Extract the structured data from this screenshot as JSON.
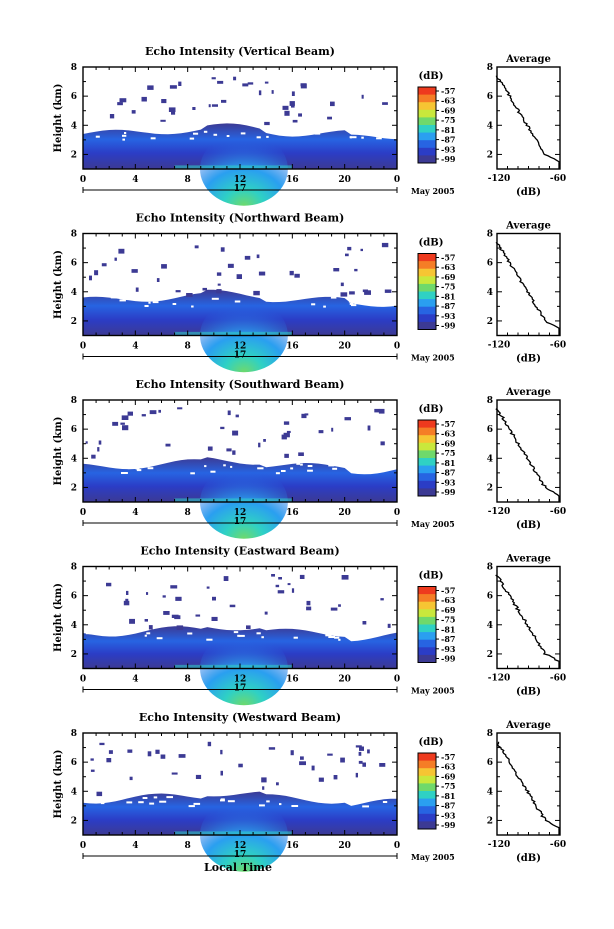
{
  "colorbar": {
    "unit_label": "(dB)",
    "tick_labels": [
      "-57",
      "-63",
      "-69",
      "-75",
      "-81",
      "-87",
      "-93",
      "-99"
    ],
    "colors": [
      "#ee3a1e",
      "#f57d26",
      "#f6c533",
      "#c9e83c",
      "#6fd96b",
      "#2fd1c4",
      "#2a9ff0",
      "#2764e2",
      "#2b3dc6",
      "#3c3a94"
    ]
  },
  "shared": {
    "x_ticks": [
      "0",
      "4",
      "8",
      "12",
      "16",
      "20",
      "0"
    ],
    "date_day": "17",
    "date_month": "May 2005",
    "y_ticks": [
      "2",
      "4",
      "6",
      "8"
    ],
    "height_label": "Height (km)",
    "avg_title": "Average",
    "avg_xlabel": "(dB)",
    "bottom_xlabel": "Local Time"
  },
  "chart_data": [
    {
      "type": "heatmap",
      "title": "Echo Intensity (Vertical Beam)",
      "xlabel": "",
      "ylabel": "Height (km)",
      "x_range_hours": [
        0,
        24
      ],
      "y_range_km": [
        1,
        8
      ],
      "z_range_db": [
        -99,
        -57
      ],
      "profile": {
        "type": "line",
        "title": "Average",
        "xlabel": "(dB)",
        "xlim": [
          -120,
          -60
        ],
        "ylim": [
          1,
          8
        ],
        "x_tick_labels": [
          "-120",
          "-60"
        ]
      }
    },
    {
      "type": "heatmap",
      "title": "Echo Intensity (Northward Beam)",
      "xlabel": "",
      "ylabel": "Height (km)",
      "x_range_hours": [
        0,
        24
      ],
      "y_range_km": [
        1,
        8
      ],
      "z_range_db": [
        -99,
        -57
      ],
      "profile": {
        "type": "line",
        "title": "Average",
        "xlabel": "(dB)",
        "xlim": [
          -120,
          -60
        ],
        "ylim": [
          1,
          8
        ],
        "x_tick_labels": [
          "-120",
          "-60"
        ]
      }
    },
    {
      "type": "heatmap",
      "title": "Echo Intensity (Southward Beam)",
      "xlabel": "",
      "ylabel": "Height (km)",
      "x_range_hours": [
        0,
        24
      ],
      "y_range_km": [
        1,
        8
      ],
      "z_range_db": [
        -99,
        -57
      ],
      "profile": {
        "type": "line",
        "title": "Average",
        "xlabel": "(dB)",
        "xlim": [
          -120,
          -60
        ],
        "ylim": [
          1,
          8
        ],
        "x_tick_labels": [
          "-120",
          "-60"
        ]
      }
    },
    {
      "type": "heatmap",
      "title": "Echo Intensity (Eastward Beam)",
      "xlabel": "",
      "ylabel": "Height (km)",
      "x_range_hours": [
        0,
        24
      ],
      "y_range_km": [
        1,
        8
      ],
      "z_range_db": [
        -99,
        -57
      ],
      "profile": {
        "type": "line",
        "title": "Average",
        "xlabel": "(dB)",
        "xlim": [
          -120,
          -60
        ],
        "ylim": [
          1,
          8
        ],
        "x_tick_labels": [
          "-120",
          "-60"
        ]
      }
    },
    {
      "type": "heatmap",
      "title": "Echo Intensity (Westward Beam)",
      "xlabel": "",
      "ylabel": "Height (km)",
      "x_range_hours": [
        0,
        24
      ],
      "y_range_km": [
        1,
        8
      ],
      "z_range_db": [
        -99,
        -57
      ],
      "profile": {
        "type": "line",
        "title": "Average",
        "xlabel": "(dB)",
        "xlim": [
          -120,
          -60
        ],
        "ylim": [
          1,
          8
        ],
        "x_tick_labels": [
          "-120",
          "-60"
        ]
      }
    }
  ]
}
